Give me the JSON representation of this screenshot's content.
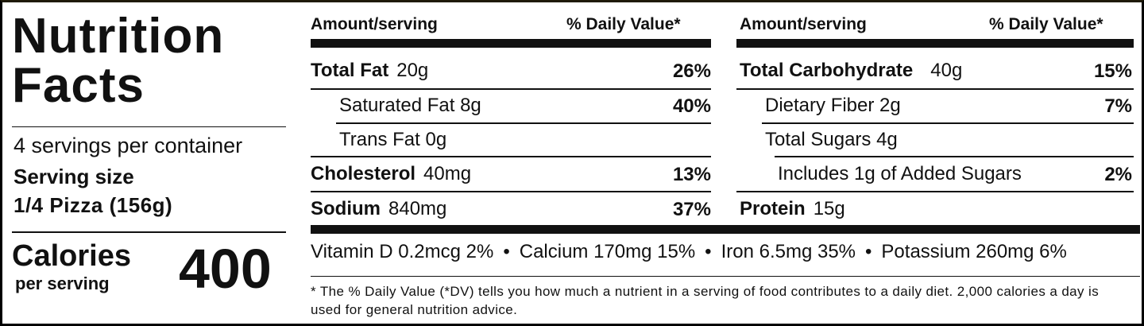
{
  "title": "Nutrition Facts",
  "servings_per_container": "4 servings per container",
  "serving_size_label": "Serving size",
  "serving_size_value": "1/4 Pizza (156g)",
  "calories_label": "Calories",
  "calories_sub": "per serving",
  "calories_value": "400",
  "left_headers": {
    "amount": "Amount/serving",
    "dv": "% Daily Value*"
  },
  "right_headers": {
    "amount": "Amount/serving",
    "dv": "% Daily Value*"
  },
  "left_rows": [
    {
      "name": "Total Fat",
      "amount": "20g",
      "dv": "26%"
    },
    {
      "name": "Saturated Fat 8g",
      "amount": "",
      "dv": "40%"
    },
    {
      "name": "Trans Fat 0g",
      "amount": "",
      "dv": ""
    },
    {
      "name": "Cholesterol",
      "amount": "40mg",
      "dv": "13%"
    },
    {
      "name": "Sodium",
      "amount": "840mg",
      "dv": "37%"
    }
  ],
  "right_rows": [
    {
      "name": "Total Carbohydrate",
      "amount": "40g",
      "dv": "15%"
    },
    {
      "name": "Dietary Fiber 2g",
      "amount": "",
      "dv": "7%"
    },
    {
      "name": "Total Sugars 4g",
      "amount": "",
      "dv": ""
    },
    {
      "name": "Includes 1g of Added Sugars",
      "amount": "",
      "dv": "2%"
    },
    {
      "name": "Protein",
      "amount": "15g",
      "dv": ""
    }
  ],
  "vitamins": [
    "Vitamin D 0.2mcg 2%",
    "Calcium 170mg 15%",
    "Iron 6.5mg 35%",
    "Potassium 260mg 6%"
  ],
  "footnote": "* The % Daily Value (*DV) tells you how much a nutrient in a serving of food contributes to a daily diet. 2,000 calories a day is used for general nutrition advice."
}
